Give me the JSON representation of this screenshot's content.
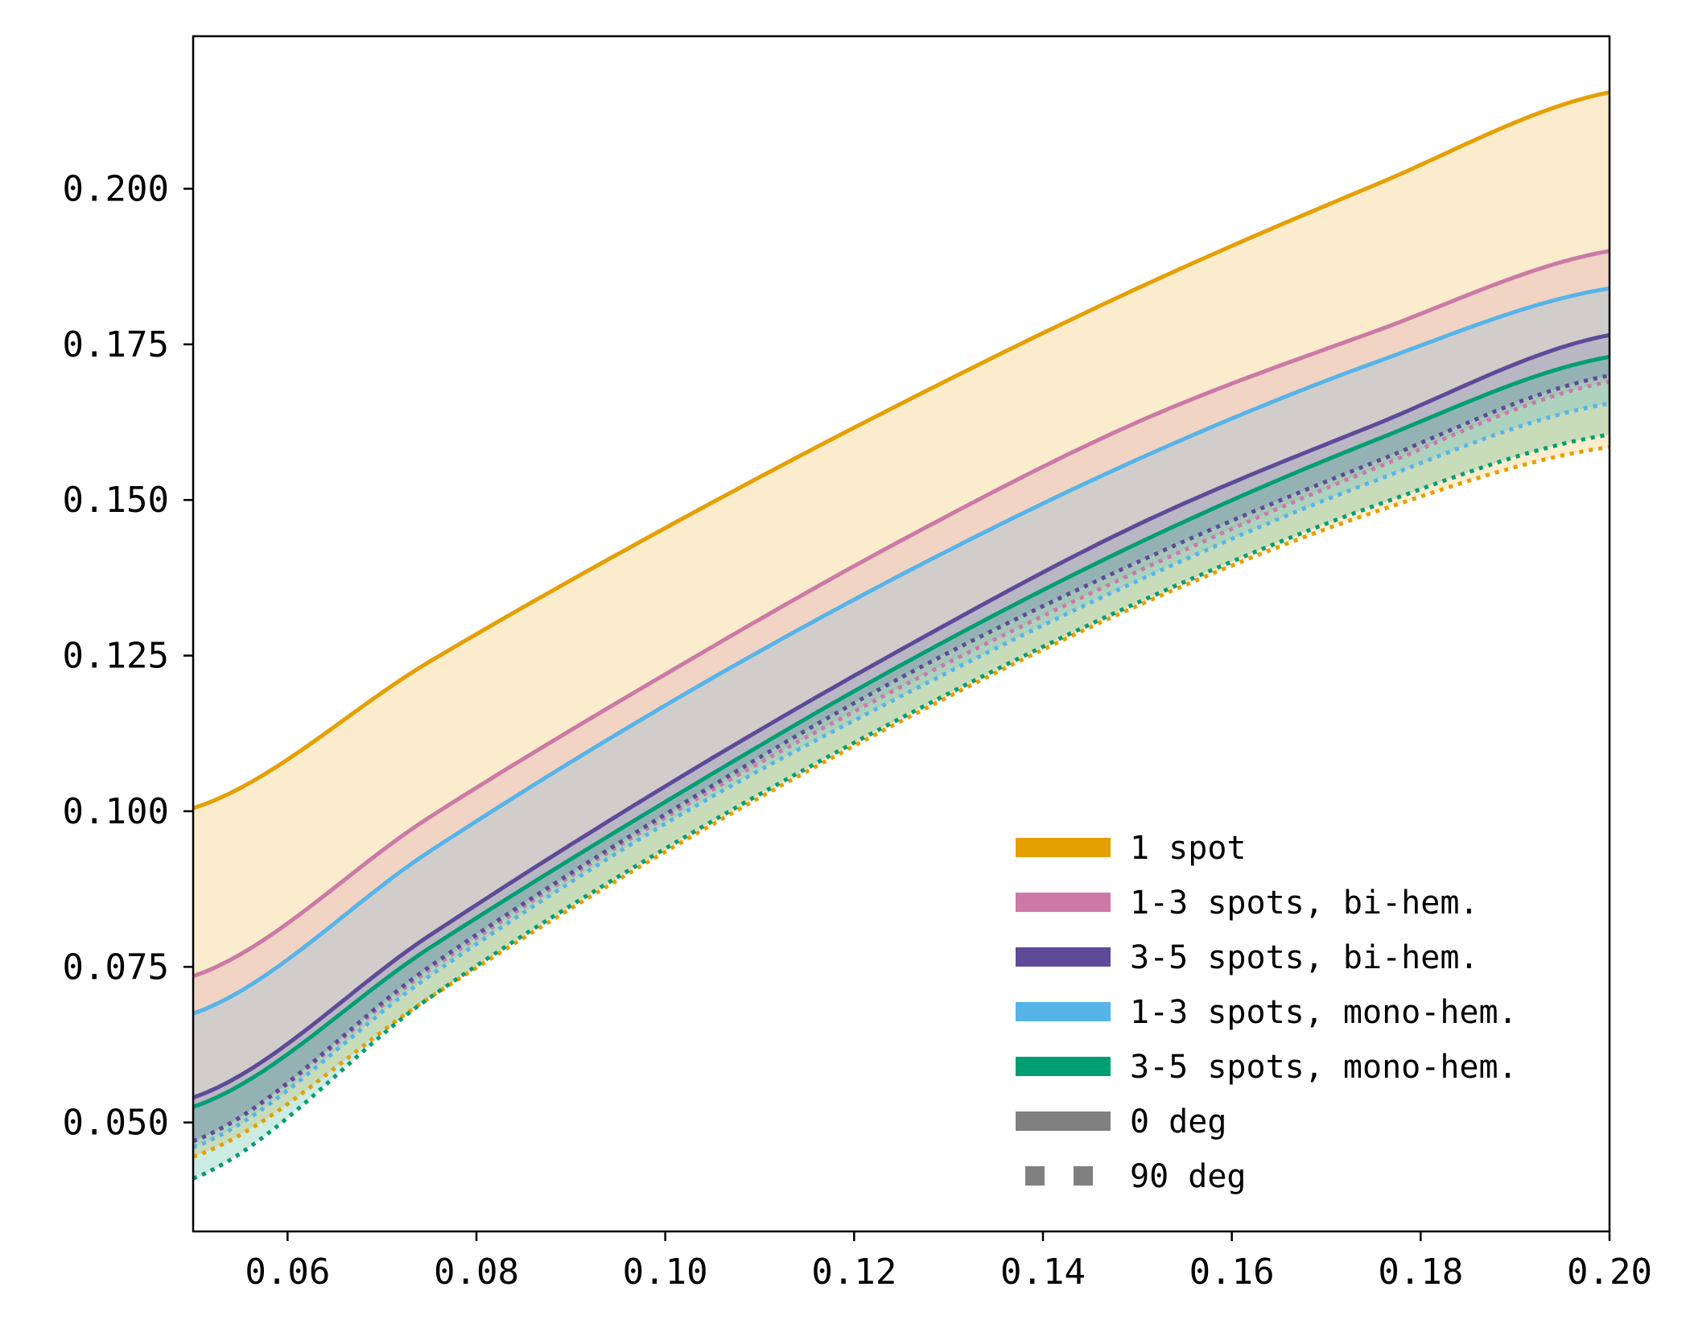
{
  "chart_data": {
    "type": "line",
    "title": "",
    "xlabel": "",
    "ylabel": "",
    "xlim": [
      0.05,
      0.2
    ],
    "ylim": [
      0.0325,
      0.2245
    ],
    "grid": false,
    "legend_position": "lower-right",
    "x_ticks": [
      "0.06",
      "0.08",
      "0.10",
      "0.12",
      "0.14",
      "0.16",
      "0.18",
      "0.20"
    ],
    "y_ticks": [
      "0.050",
      "0.075",
      "0.100",
      "0.125",
      "0.150",
      "0.175",
      "0.200"
    ],
    "x": [
      0.05,
      0.075,
      0.1,
      0.125,
      0.15,
      0.175,
      0.2
    ],
    "series": [
      {
        "name": "1 spot",
        "color": "#E69F00",
        "angle_0": [
          0.1005,
          0.124,
          0.1455,
          0.1655,
          0.184,
          0.2005,
          0.2155
        ],
        "angle_90": [
          0.0445,
          0.07,
          0.0935,
          0.1145,
          0.133,
          0.148,
          0.1585
        ]
      },
      {
        "name": "1-3 spots, bi-hem.",
        "color": "#CC79A7",
        "angle_0": [
          0.0735,
          0.099,
          0.122,
          0.1435,
          0.1625,
          0.177,
          0.19
        ],
        "angle_90": [
          0.047,
          0.0745,
          0.099,
          0.12,
          0.1385,
          0.155,
          0.169
        ]
      },
      {
        "name": "3-5 spots, bi-hem.",
        "color": "#5E4A98",
        "angle_0": [
          0.054,
          0.08,
          0.104,
          0.126,
          0.146,
          0.162,
          0.1765
        ],
        "angle_90": [
          0.047,
          0.075,
          0.0995,
          0.1215,
          0.14,
          0.156,
          0.17
        ]
      },
      {
        "name": "1-3 spots, mono-hem.",
        "color": "#56B4E9",
        "angle_0": [
          0.0675,
          0.0935,
          0.117,
          0.138,
          0.1565,
          0.172,
          0.184
        ],
        "angle_90": [
          0.046,
          0.0735,
          0.098,
          0.1185,
          0.137,
          0.153,
          0.1655
        ]
      },
      {
        "name": "3-5 spots, mono-hem.",
        "color": "#009E73",
        "angle_0": [
          0.0525,
          0.078,
          0.1015,
          0.1235,
          0.143,
          0.1595,
          0.173
        ],
        "angle_90": [
          0.041,
          0.07,
          0.094,
          0.115,
          0.1335,
          0.149,
          0.1605
        ]
      }
    ],
    "legend_extra": [
      {
        "label": "0 deg",
        "color": "#808080",
        "style": "solid"
      },
      {
        "label": "90 deg",
        "color": "#808080",
        "style": "dotted"
      }
    ]
  }
}
